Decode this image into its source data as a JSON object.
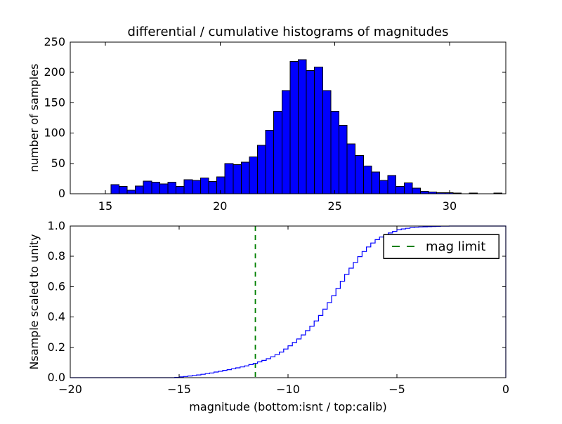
{
  "figure": {
    "background": "#ffffff"
  },
  "chart_data": [
    {
      "type": "bar",
      "subtype": "differential-histogram",
      "title": "differential / cumulative histograms of magnitudes",
      "xlabel": "",
      "ylabel": "number of samples",
      "xlim": [
        13.47,
        32.45
      ],
      "ylim": [
        0,
        250
      ],
      "xticks": [
        15,
        20,
        25,
        30
      ],
      "xticklabels": [
        "15",
        "20",
        "25",
        "30"
      ],
      "yticks": [
        0,
        50,
        100,
        150,
        200,
        250
      ],
      "yticklabels": [
        "0",
        "50",
        "100",
        "150",
        "200",
        "250"
      ],
      "grid": false,
      "bar_color": "#0000ff",
      "bar_edge_color": "#000000",
      "bin_start": 15.24,
      "bin_width": 0.355,
      "values": [
        15,
        12,
        6,
        13,
        21,
        19,
        16,
        19,
        12,
        23,
        22,
        26,
        20,
        28,
        50,
        48,
        52,
        61,
        80,
        105,
        136,
        170,
        218,
        221,
        203,
        209,
        170,
        136,
        113,
        82,
        63,
        46,
        36,
        22,
        30,
        12,
        18,
        9,
        4,
        3,
        2,
        2,
        1,
        0,
        1,
        0,
        0,
        1
      ]
    },
    {
      "type": "line",
      "subtype": "cumulative-step-histogram",
      "title": "",
      "xlabel": "magnitude (bottom:isnt / top:calib)",
      "ylabel": "Nsample scaled to unity",
      "xlim": [
        -20,
        0
      ],
      "ylim": [
        0.0,
        1.0
      ],
      "xticks": [
        -20,
        -15,
        -10,
        -5,
        0
      ],
      "xticklabels": [
        "−20",
        "−15",
        "−10",
        "−5",
        "0"
      ],
      "yticks": [
        0.0,
        0.2,
        0.4,
        0.6,
        0.8,
        1.0
      ],
      "yticklabels": [
        "0.0",
        "0.2",
        "0.4",
        "0.6",
        "0.8",
        "1.0"
      ],
      "grid": false,
      "line_color": "#0000ff",
      "step_start_x": -15.2,
      "step_dx": 0.2,
      "cumulative_values": [
        0.002,
        0.005,
        0.008,
        0.011,
        0.015,
        0.018,
        0.022,
        0.027,
        0.031,
        0.037,
        0.042,
        0.048,
        0.053,
        0.059,
        0.065,
        0.071,
        0.078,
        0.086,
        0.094,
        0.104,
        0.114,
        0.125,
        0.138,
        0.152,
        0.169,
        0.189,
        0.21,
        0.232,
        0.255,
        0.282,
        0.31,
        0.34,
        0.374,
        0.41,
        0.452,
        0.495,
        0.54,
        0.588,
        0.636,
        0.681,
        0.722,
        0.76,
        0.798,
        0.832,
        0.862,
        0.888,
        0.91,
        0.928,
        0.942,
        0.954,
        0.965,
        0.975,
        0.981,
        0.985,
        0.99,
        0.992,
        0.994,
        0.995,
        0.996,
        0.997,
        0.998,
        0.999,
        0.999,
        1.0
      ],
      "plateau_to_x": 0,
      "closes_to_zero_at_right_edge": true,
      "mag_limit_line": {
        "x": -11.5,
        "color": "#008000",
        "style": "dashed"
      },
      "legend": {
        "position": "upper right",
        "entries": [
          {
            "label": "mag limit",
            "color": "#008000",
            "style": "dashed"
          }
        ]
      }
    }
  ]
}
